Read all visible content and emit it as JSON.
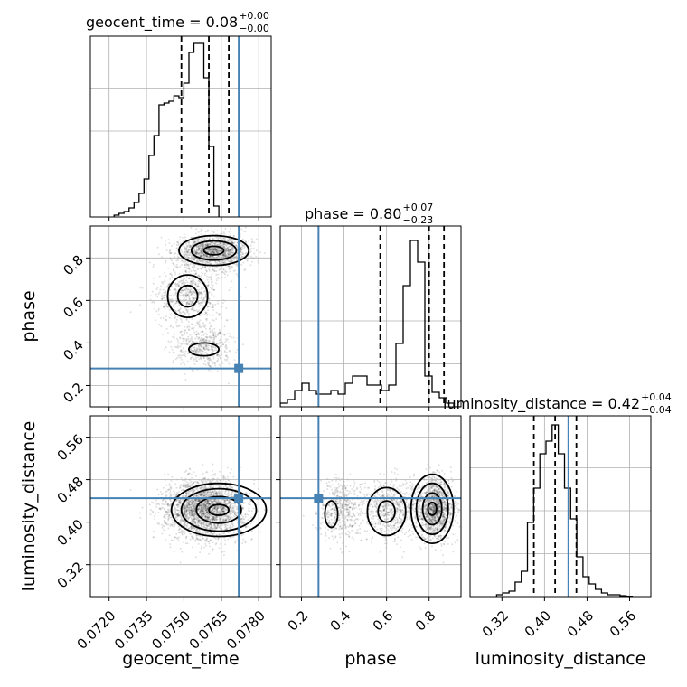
{
  "chart_data": {
    "type": "corner",
    "parameters": [
      "geocent_time",
      "phase",
      "luminosity_distance"
    ],
    "truth": {
      "geocent_time": 0.0772,
      "phase": 0.28,
      "luminosity_distance": 0.445
    },
    "ranges": {
      "geocent_time": [
        0.07125,
        0.0785
      ],
      "phase": [
        0.1,
        0.95
      ],
      "luminosity_distance": [
        0.26,
        0.6
      ]
    },
    "ticks": {
      "geocent_time": [
        "0.0720",
        "0.0735",
        "0.0750",
        "0.0765",
        "0.0780"
      ],
      "phase": [
        "0.2",
        "0.4",
        "0.6",
        "0.8"
      ],
      "luminosity_distance": [
        "0.32",
        "0.40",
        "0.48",
        "0.56"
      ]
    },
    "titles": [
      {
        "param": "geocent_time",
        "prefix": "geocent_time = 0.08",
        "plus": "+0.00",
        "minus": "−0.00"
      },
      {
        "param": "phase",
        "prefix": "phase = 0.80",
        "plus": "+0.07",
        "minus": "−0.23"
      },
      {
        "param": "luminosity_distance",
        "prefix": "luminosity_distance = 0.42",
        "plus": "+0.04",
        "minus": "−0.04"
      }
    ],
    "quantiles": {
      "geocent_time": [
        0.0749,
        0.076,
        0.0768
      ],
      "phase": [
        0.57,
        0.8,
        0.87
      ],
      "luminosity_distance": [
        0.38,
        0.42,
        0.46
      ]
    },
    "histograms": {
      "geocent_time": {
        "edges_start": 0.0722,
        "bin_width": 0.0002,
        "counts": [
          0.01,
          0.02,
          0.03,
          0.05,
          0.08,
          0.13,
          0.21,
          0.34,
          0.45,
          0.62,
          0.63,
          0.64,
          0.67,
          0.66,
          0.74,
          0.91,
          0.96,
          0.96,
          0.77,
          0.39,
          0.06
        ]
      },
      "phase": {
        "edges_start": 0.1,
        "bin_width": 0.034,
        "counts": [
          0.02,
          0.04,
          0.09,
          0.13,
          0.09,
          0.07,
          0.07,
          0.09,
          0.07,
          0.13,
          0.17,
          0.17,
          0.12,
          0.12,
          0.09,
          0.12,
          0.35,
          0.67,
          0.92,
          0.8,
          0.17,
          0.08,
          0.05,
          0.02,
          0.0
        ]
      },
      "luminosity_distance": {
        "edges_start": 0.31,
        "bin_width": 0.0116,
        "counts": [
          0.01,
          0.02,
          0.03,
          0.08,
          0.14,
          0.41,
          0.6,
          0.79,
          0.86,
          0.95,
          0.79,
          0.6,
          0.43,
          0.22,
          0.11,
          0.07,
          0.04,
          0.02,
          0.01,
          0.01,
          0.005,
          0.002
        ]
      }
    },
    "xlabels": [
      "geocent_time",
      "phase",
      "luminosity_distance"
    ],
    "ylabels": [
      "phase",
      "luminosity_distance"
    ],
    "colors": {
      "truth": "#4682b4",
      "contour": "#000000",
      "grid": "#b0b0b0"
    }
  }
}
